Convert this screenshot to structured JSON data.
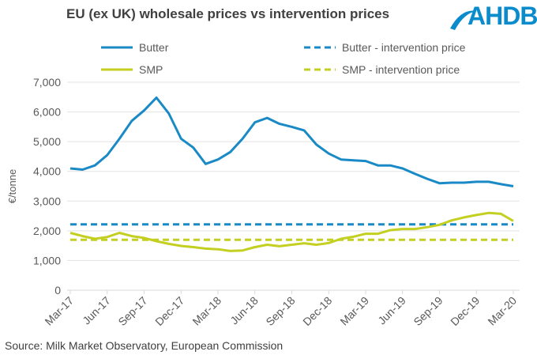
{
  "chart_data": {
    "type": "line",
    "title": "EU (ex UK)  wholesale prices vs intervention prices",
    "ylabel": "€/tonne",
    "xlabel": "",
    "ylim": [
      0,
      7000
    ],
    "yticks": [
      "0",
      "1,000",
      "2,000",
      "3,000",
      "4,000",
      "5,000",
      "6,000",
      "7,000"
    ],
    "xtick_labels": [
      "Mar-17",
      "Jun-17",
      "Sep-17",
      "Dec-17",
      "Mar-18",
      "Jun-18",
      "Sep-18",
      "Dec-18",
      "Mar-19",
      "Jun-19",
      "Sep-19",
      "Dec-19",
      "Mar-20"
    ],
    "x": [
      "Mar-17",
      "Apr-17",
      "May-17",
      "Jun-17",
      "Jul-17",
      "Aug-17",
      "Sep-17",
      "Oct-17",
      "Nov-17",
      "Dec-17",
      "Jan-18",
      "Feb-18",
      "Mar-18",
      "Apr-18",
      "May-18",
      "Jun-18",
      "Jul-18",
      "Aug-18",
      "Sep-18",
      "Oct-18",
      "Nov-18",
      "Dec-18",
      "Jan-19",
      "Feb-19",
      "Mar-19",
      "Apr-19",
      "May-19",
      "Jun-19",
      "Jul-19",
      "Aug-19",
      "Sep-19",
      "Oct-19",
      "Nov-19",
      "Dec-19",
      "Jan-20",
      "Feb-20",
      "Mar-20"
    ],
    "grid": true,
    "legend_position": "top",
    "series": [
      {
        "name": "Butter",
        "color": "#1a8ac6",
        "dashed": false,
        "values": [
          4100,
          4060,
          4200,
          4550,
          5100,
          5700,
          6050,
          6480,
          5950,
          5100,
          4800,
          4250,
          4400,
          4650,
          5100,
          5650,
          5800,
          5600,
          5500,
          5380,
          4900,
          4600,
          4400,
          4370,
          4350,
          4200,
          4200,
          4100,
          3920,
          3750,
          3600,
          3620,
          3620,
          3650,
          3650,
          3570,
          3500
        ]
      },
      {
        "name": "Butter - intervention price",
        "color": "#1a8ac6",
        "dashed": true,
        "values": [
          2218,
          2218,
          2218,
          2218,
          2218,
          2218,
          2218,
          2218,
          2218,
          2218,
          2218,
          2218,
          2218,
          2218,
          2218,
          2218,
          2218,
          2218,
          2218,
          2218,
          2218,
          2218,
          2218,
          2218,
          2218,
          2218,
          2218,
          2218,
          2218,
          2218,
          2218,
          2218,
          2218,
          2218,
          2218,
          2218,
          2218
        ]
      },
      {
        "name": "SMP",
        "color": "#c3cf21",
        "dashed": false,
        "values": [
          1930,
          1820,
          1730,
          1790,
          1930,
          1820,
          1760,
          1650,
          1560,
          1490,
          1450,
          1400,
          1380,
          1320,
          1340,
          1450,
          1530,
          1480,
          1530,
          1580,
          1530,
          1590,
          1730,
          1800,
          1900,
          1900,
          2020,
          2060,
          2060,
          2120,
          2200,
          2350,
          2450,
          2530,
          2600,
          2570,
          2330
        ]
      },
      {
        "name": "SMP - intervention price",
        "color": "#c3cf21",
        "dashed": true,
        "values": [
          1698,
          1698,
          1698,
          1698,
          1698,
          1698,
          1698,
          1698,
          1698,
          1698,
          1698,
          1698,
          1698,
          1698,
          1698,
          1698,
          1698,
          1698,
          1698,
          1698,
          1698,
          1698,
          1698,
          1698,
          1698,
          1698,
          1698,
          1698,
          1698,
          1698,
          1698,
          1698,
          1698,
          1698,
          1698,
          1698,
          1698
        ]
      }
    ]
  },
  "logo": {
    "text": "AHDB"
  },
  "source": "Source: Milk Market Observatory, European Commission"
}
